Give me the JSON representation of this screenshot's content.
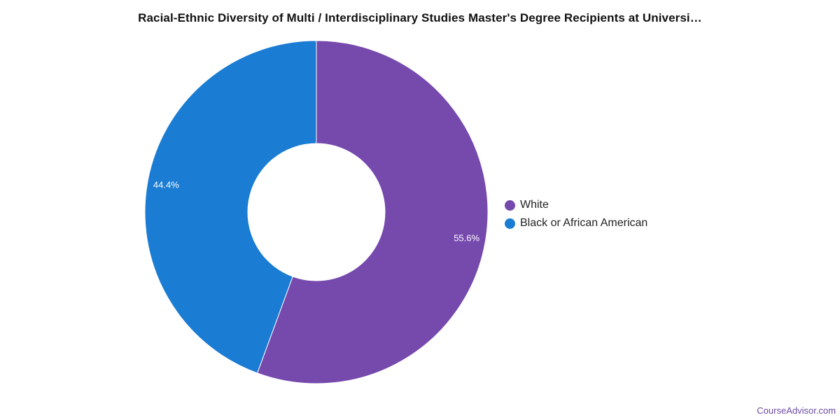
{
  "chart_data": {
    "type": "pie",
    "title": "Racial-Ethnic Diversity of Multi / Interdisciplinary Studies Master's Degree Recipients at Universi…",
    "categories": [
      "White",
      "Black or African American"
    ],
    "values": [
      55.6,
      44.4
    ],
    "value_labels": [
      "55.6%",
      "44.4%"
    ],
    "colors": [
      "#7649ad",
      "#1a7cd3"
    ],
    "donut": true,
    "legend_position": "right"
  },
  "footer": {
    "credit": "CourseAdvisor.com"
  }
}
